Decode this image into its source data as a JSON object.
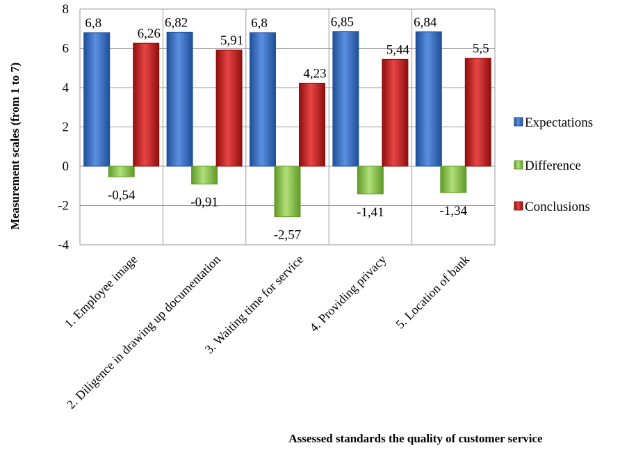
{
  "chart_data": {
    "type": "bar",
    "xlabel": "Assessed standards the quality of customer service",
    "ylabel": "Measurement scales (from 1 to 7)",
    "ylim": [
      -4,
      8
    ],
    "yticks": [
      8,
      6,
      4,
      2,
      0,
      -2,
      -4
    ],
    "grid": true,
    "legend_position": "right",
    "categories": [
      "1. Employee image",
      "2. Diligence in drawing up documentation",
      "3. Waiting time for service",
      "4. Providing privacy",
      "5. Location of bank"
    ],
    "series": [
      {
        "name": "Expectations",
        "color": "#3f74c9",
        "dark": "#1f4f99",
        "values": [
          6.8,
          6.82,
          6.8,
          6.85,
          6.84
        ],
        "labels": [
          "6,8",
          "6,82",
          "6,8",
          "6,85",
          "6,84"
        ]
      },
      {
        "name": "Difference",
        "color": "#92d050",
        "dark": "#5f9a28",
        "values": [
          -0.54,
          -0.91,
          -2.57,
          -1.41,
          -1.34
        ],
        "labels": [
          "-0,54",
          "-0,91",
          "-2,57",
          "-1,41",
          "-1,34"
        ]
      },
      {
        "name": "Conclusions",
        "color": "#d41f1f",
        "dark": "#8f0e0e",
        "values": [
          6.26,
          5.91,
          4.23,
          5.44,
          5.5
        ],
        "labels": [
          "6,26",
          "5,91",
          "4,23",
          "5,44",
          "5,5"
        ]
      }
    ]
  }
}
